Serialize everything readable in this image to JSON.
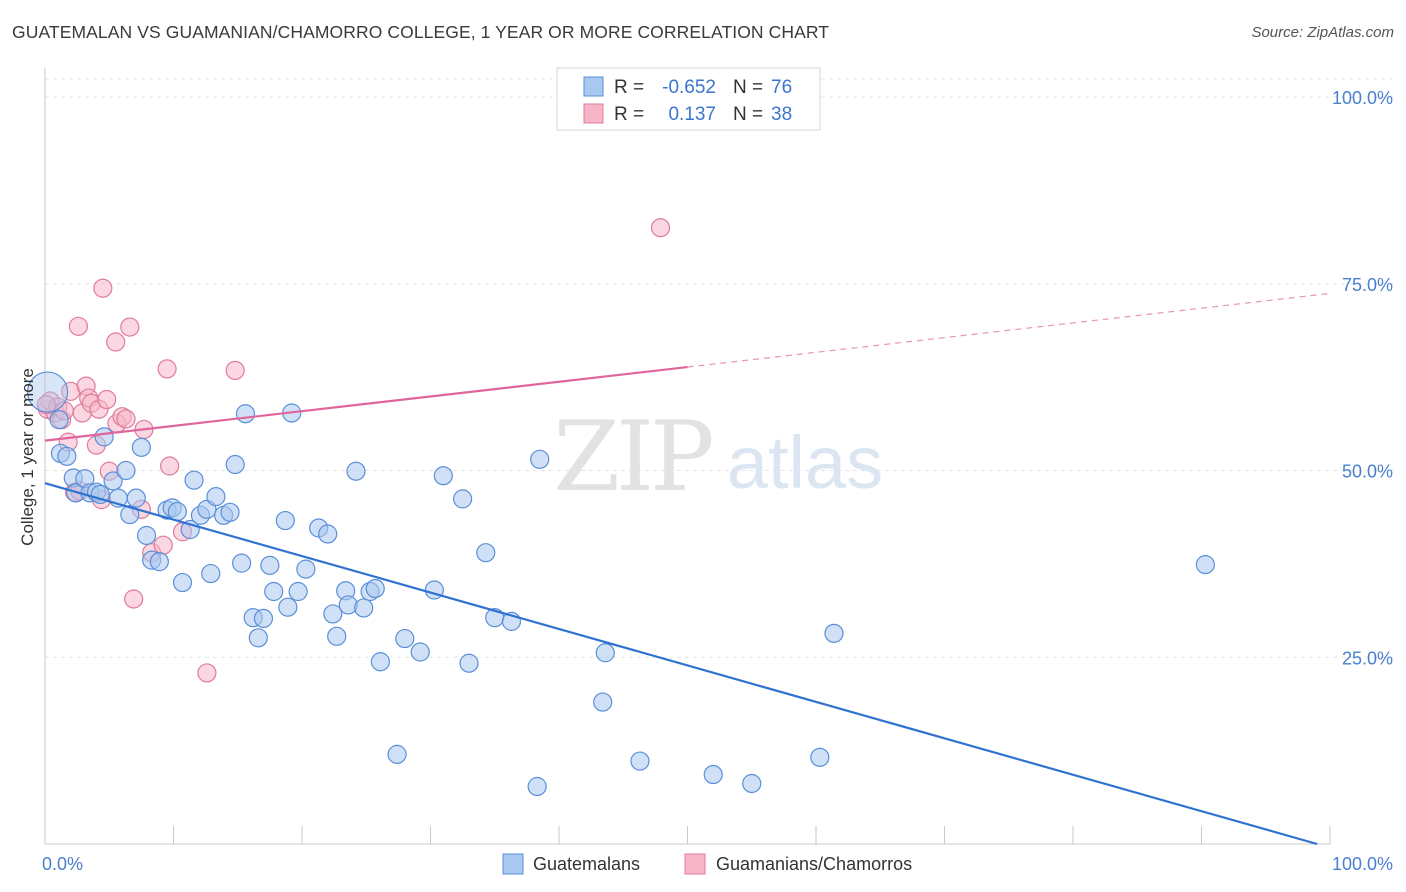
{
  "chart_data": {
    "type": "scatter",
    "title": "GUATEMALAN VS GUAMANIAN/CHAMORRO COLLEGE, 1 YEAR OR MORE CORRELATION CHART",
    "source": "Source: ZipAtlas.com",
    "ylabel": "College, 1 year or more",
    "xlabel": "",
    "xlim": [
      0,
      100
    ],
    "ylim": [
      0,
      101
    ],
    "y_tick_labels": [
      {
        "value": 100,
        "label": "100.0%"
      },
      {
        "value": 75,
        "label": "75.0%"
      },
      {
        "value": 50,
        "label": "50.0%"
      },
      {
        "value": 25,
        "label": "25.0%"
      }
    ],
    "x_tick_labels": [
      {
        "value": 0,
        "label": "0.0%"
      },
      {
        "value": 100,
        "label": "100.0%"
      }
    ],
    "watermark": {
      "zip": "ZIP",
      "atlas": "atlas"
    },
    "colors": {
      "blue_fill": "#a9c8f0",
      "blue_stroke": "#5a8fd8",
      "blue_line": "#2f72d0",
      "pink_fill": "#f6b6c8",
      "pink_stroke": "#e07b9c",
      "pink_line": "#e0659a",
      "accent_text": "#3a76cf",
      "grid": "#e4e4e4"
    },
    "legend": [
      {
        "r_label": "R =",
        "r_value": "-0.652",
        "n_label": "N =",
        "n_value": "76"
      },
      {
        "r_label": "R =",
        "r_value": "0.137",
        "n_label": "N =",
        "n_value": "38"
      }
    ],
    "series": [
      {
        "name": "Guatemalans",
        "color": "blue",
        "trend": {
          "x0": 0,
          "y0": 48.3,
          "x1": 99,
          "y1": 0,
          "dashed_from": null
        },
        "points": [
          {
            "x": 0.2,
            "y": 60.5,
            "big": true
          },
          {
            "x": 1.1,
            "y": 56.8
          },
          {
            "x": 1.2,
            "y": 52.3
          },
          {
            "x": 1.7,
            "y": 51.9
          },
          {
            "x": 2.2,
            "y": 49.0
          },
          {
            "x": 2.4,
            "y": 47.0
          },
          {
            "x": 3.1,
            "y": 48.9
          },
          {
            "x": 3.5,
            "y": 47.0
          },
          {
            "x": 4.0,
            "y": 47.1
          },
          {
            "x": 4.3,
            "y": 46.8
          },
          {
            "x": 4.6,
            "y": 54.5
          },
          {
            "x": 5.3,
            "y": 48.6
          },
          {
            "x": 5.7,
            "y": 46.3
          },
          {
            "x": 6.3,
            "y": 50.0
          },
          {
            "x": 6.6,
            "y": 44.1
          },
          {
            "x": 7.1,
            "y": 46.3
          },
          {
            "x": 7.5,
            "y": 53.1
          },
          {
            "x": 7.9,
            "y": 41.3
          },
          {
            "x": 8.3,
            "y": 38.0
          },
          {
            "x": 8.9,
            "y": 37.8
          },
          {
            "x": 9.5,
            "y": 44.7
          },
          {
            "x": 9.9,
            "y": 45.0
          },
          {
            "x": 10.3,
            "y": 44.5
          },
          {
            "x": 10.7,
            "y": 35.0
          },
          {
            "x": 11.3,
            "y": 42.1
          },
          {
            "x": 11.6,
            "y": 48.7
          },
          {
            "x": 12.1,
            "y": 44.0
          },
          {
            "x": 12.6,
            "y": 44.8
          },
          {
            "x": 12.9,
            "y": 36.2
          },
          {
            "x": 13.3,
            "y": 46.5
          },
          {
            "x": 13.9,
            "y": 44.0
          },
          {
            "x": 14.4,
            "y": 44.4
          },
          {
            "x": 14.8,
            "y": 50.8
          },
          {
            "x": 15.3,
            "y": 37.6
          },
          {
            "x": 15.6,
            "y": 57.6
          },
          {
            "x": 16.2,
            "y": 30.3
          },
          {
            "x": 16.6,
            "y": 27.6
          },
          {
            "x": 17.0,
            "y": 30.2
          },
          {
            "x": 17.5,
            "y": 37.3
          },
          {
            "x": 17.8,
            "y": 33.8
          },
          {
            "x": 18.7,
            "y": 43.3
          },
          {
            "x": 18.9,
            "y": 31.7
          },
          {
            "x": 19.2,
            "y": 57.7
          },
          {
            "x": 19.7,
            "y": 33.8
          },
          {
            "x": 20.3,
            "y": 36.8
          },
          {
            "x": 21.3,
            "y": 42.3
          },
          {
            "x": 22.0,
            "y": 41.5
          },
          {
            "x": 22.4,
            "y": 30.8
          },
          {
            "x": 22.7,
            "y": 27.8
          },
          {
            "x": 23.4,
            "y": 33.9
          },
          {
            "x": 23.6,
            "y": 32.0
          },
          {
            "x": 24.2,
            "y": 49.9
          },
          {
            "x": 24.8,
            "y": 31.6
          },
          {
            "x": 25.3,
            "y": 33.8
          },
          {
            "x": 25.7,
            "y": 34.2
          },
          {
            "x": 26.1,
            "y": 24.4
          },
          {
            "x": 27.4,
            "y": 12.0
          },
          {
            "x": 28.0,
            "y": 27.5
          },
          {
            "x": 29.2,
            "y": 25.7
          },
          {
            "x": 30.3,
            "y": 34.0
          },
          {
            "x": 31.0,
            "y": 49.3
          },
          {
            "x": 32.5,
            "y": 46.2
          },
          {
            "x": 33.0,
            "y": 24.2
          },
          {
            "x": 34.3,
            "y": 39.0
          },
          {
            "x": 35.0,
            "y": 30.3
          },
          {
            "x": 36.3,
            "y": 29.8
          },
          {
            "x": 38.3,
            "y": 7.7
          },
          {
            "x": 38.5,
            "y": 51.5
          },
          {
            "x": 43.4,
            "y": 19.0
          },
          {
            "x": 43.6,
            "y": 25.6
          },
          {
            "x": 46.3,
            "y": 11.1
          },
          {
            "x": 52.0,
            "y": 9.3
          },
          {
            "x": 55.0,
            "y": 8.1
          },
          {
            "x": 60.3,
            "y": 11.6
          },
          {
            "x": 61.4,
            "y": 28.2
          },
          {
            "x": 90.3,
            "y": 37.4
          }
        ]
      },
      {
        "name": "Guamanians/Chamorros",
        "color": "pink",
        "trend": {
          "x0": 0,
          "y0": 54.0,
          "x1": 100,
          "y1": 73.7,
          "dashed_from": 50
        },
        "points": [
          {
            "x": 0.2,
            "y": 58.2
          },
          {
            "x": 0.4,
            "y": 59.3
          },
          {
            "x": 0.8,
            "y": 57.7
          },
          {
            "x": 1.0,
            "y": 58.5
          },
          {
            "x": 1.3,
            "y": 56.8
          },
          {
            "x": 1.8,
            "y": 53.8
          },
          {
            "x": 2.0,
            "y": 60.6
          },
          {
            "x": 2.3,
            "y": 47.1
          },
          {
            "x": 2.6,
            "y": 69.3
          },
          {
            "x": 2.9,
            "y": 57.7
          },
          {
            "x": 3.2,
            "y": 61.3
          },
          {
            "x": 3.4,
            "y": 59.7
          },
          {
            "x": 3.6,
            "y": 59.0
          },
          {
            "x": 4.0,
            "y": 53.4
          },
          {
            "x": 4.2,
            "y": 58.2
          },
          {
            "x": 4.4,
            "y": 46.1
          },
          {
            "x": 4.5,
            "y": 74.4
          },
          {
            "x": 4.8,
            "y": 59.5
          },
          {
            "x": 5.0,
            "y": 49.9
          },
          {
            "x": 5.5,
            "y": 67.2
          },
          {
            "x": 5.6,
            "y": 56.3
          },
          {
            "x": 6.0,
            "y": 57.2
          },
          {
            "x": 6.3,
            "y": 56.9
          },
          {
            "x": 6.6,
            "y": 69.2
          },
          {
            "x": 6.9,
            "y": 32.8
          },
          {
            "x": 7.5,
            "y": 44.8
          },
          {
            "x": 7.7,
            "y": 55.5
          },
          {
            "x": 8.3,
            "y": 39.0
          },
          {
            "x": 9.2,
            "y": 40.0
          },
          {
            "x": 9.5,
            "y": 63.6
          },
          {
            "x": 9.7,
            "y": 50.6
          },
          {
            "x": 10.7,
            "y": 41.8
          },
          {
            "x": 12.6,
            "y": 22.9
          },
          {
            "x": 14.8,
            "y": 63.4
          },
          {
            "x": 47.9,
            "y": 82.5
          },
          {
            "x": 0.1,
            "y": 58.8
          },
          {
            "x": 1.5,
            "y": 58.0
          },
          {
            "x": 2.7,
            "y": 47.3
          }
        ]
      }
    ],
    "bottom_legend": [
      "Guatemalans",
      "Guamanians/Chamorros"
    ]
  }
}
